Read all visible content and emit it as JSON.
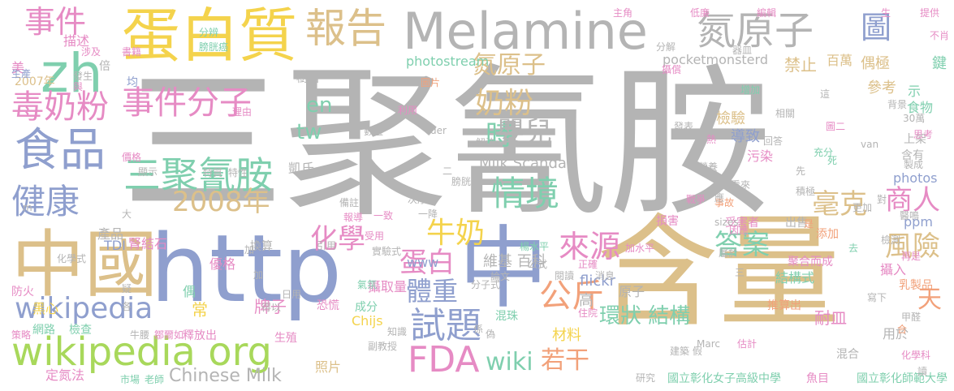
{
  "palette": {
    "gray": "#b4b4b4",
    "tan": "#dcc08a",
    "blue": "#8f9fce",
    "green": "#7fcfae",
    "yellow": "#f4d34c",
    "pink": "#e68bc4",
    "orange": "#f2a17a",
    "lime": "#a8d85b"
  },
  "words": [
    {
      "id": "sanjuqinganan-big",
      "text": "三聚氰胺",
      "color": "gray"
    },
    {
      "id": "hanliang",
      "text": "含量",
      "color": "tan"
    },
    {
      "id": "http",
      "text": "http",
      "color": "blue"
    },
    {
      "id": "zhongguo",
      "text": "中國",
      "color": "tan"
    },
    {
      "id": "zhong",
      "text": "中",
      "color": "blue"
    },
    {
      "id": "melamine",
      "text": "Melamine",
      "color": "gray"
    },
    {
      "id": "danbaizhi",
      "text": "蛋白質",
      "color": "yellow"
    },
    {
      "id": "danyuanzi",
      "text": "氮原子",
      "color": "gray"
    },
    {
      "id": "baogao",
      "text": "報告",
      "color": "tan"
    },
    {
      "id": "zh",
      "text": "zh",
      "color": "green"
    },
    {
      "id": "tu",
      "text": "圖",
      "color": "blue"
    },
    {
      "id": "shijian-left",
      "text": "事件",
      "color": "pink"
    },
    {
      "id": "dunainfen",
      "text": "毒奶粉",
      "color": "pink"
    },
    {
      "id": "shijianfenzi",
      "text": "事件分子",
      "color": "pink"
    },
    {
      "id": "shipin",
      "text": "食品",
      "color": "blue"
    },
    {
      "id": "sanjuqinganan-small",
      "text": "三聚氰胺",
      "color": "green"
    },
    {
      "id": "jiankang",
      "text": "健康",
      "color": "blue"
    },
    {
      "id": "nianfen",
      "text": "奶粉",
      "color": "tan"
    },
    {
      "id": "shi",
      "text": "時",
      "color": "green"
    },
    {
      "id": "yinger",
      "text": "嬰兒",
      "color": "gray"
    },
    {
      "id": "qingjing",
      "text": "情境",
      "color": "green"
    },
    {
      "id": "en",
      "text": "en",
      "color": "green"
    },
    {
      "id": "tw",
      "text": "tw",
      "color": "green"
    },
    {
      "id": "danyuanzi-small",
      "text": "氮原子",
      "color": "tan"
    },
    {
      "id": "y2008",
      "text": "2008年",
      "color": "tan"
    },
    {
      "id": "huaxue",
      "text": "化學",
      "color": "pink"
    },
    {
      "id": "niunai",
      "text": "牛奶",
      "color": "yellow"
    },
    {
      "id": "danbai",
      "text": "蛋白",
      "color": "pink"
    },
    {
      "id": "laiyuan",
      "text": "來源",
      "color": "pink"
    },
    {
      "id": "tizhong",
      "text": "體重",
      "color": "blue"
    },
    {
      "id": "shiti",
      "text": "試題",
      "color": "blue"
    },
    {
      "id": "gongjin",
      "text": "公斤",
      "color": "orange"
    },
    {
      "id": "fda",
      "text": "FDA",
      "color": "pink"
    },
    {
      "id": "wiki",
      "text": "wiki",
      "color": "green"
    },
    {
      "id": "ruogan",
      "text": "若干",
      "color": "orange"
    },
    {
      "id": "daan",
      "text": "答案",
      "color": "green"
    },
    {
      "id": "haoke",
      "text": "毫克",
      "color": "tan"
    },
    {
      "id": "shangren",
      "text": "商人",
      "color": "pink"
    },
    {
      "id": "fengxian",
      "text": "風險",
      "color": "tan"
    },
    {
      "id": "tian",
      "text": "天",
      "color": "orange"
    },
    {
      "id": "wikipedia",
      "text": "wikipedia",
      "color": "blue"
    },
    {
      "id": "wikipedia-org",
      "text": "wikipedia org",
      "color": "lime"
    },
    {
      "id": "huanzhuang",
      "text": "環狀 結構",
      "color": "green"
    },
    {
      "id": "chinese-milk",
      "text": "Chinese Milk",
      "color": "gray"
    },
    {
      "id": "milk-scandal",
      "text": "Milk Scandal",
      "color": "gray"
    },
    {
      "id": "photostream",
      "text": "photostream",
      "color": "green"
    },
    {
      "id": "pocketmonsterd",
      "text": "pocketmonsterd",
      "color": "gray"
    },
    {
      "id": "weiji",
      "text": "維基 百科",
      "color": "gray"
    },
    {
      "id": "flickr",
      "text": "flickr",
      "color": "blue"
    },
    {
      "id": "photos",
      "text": "photos",
      "color": "blue"
    },
    {
      "id": "jiegoushi",
      "text": "結構式",
      "color": "green"
    },
    {
      "id": "naimin",
      "text": "耐皿",
      "color": "pink"
    },
    {
      "id": "shenjieshi",
      "text": "腎結石",
      "color": "pink"
    },
    {
      "id": "sheququ",
      "text": "攝取量",
      "color": "pink"
    },
    {
      "id": "paizi",
      "text": "牌子",
      "color": "pink"
    },
    {
      "id": "chang",
      "text": "常",
      "color": "yellow"
    },
    {
      "id": "cailiao",
      "text": "材料",
      "color": "yellow"
    },
    {
      "id": "gao",
      "text": "高",
      "color": "gray"
    },
    {
      "id": "yuanzi",
      "text": "原子",
      "color": "gray"
    },
    {
      "id": "ppm",
      "text": "ppm",
      "color": "blue"
    },
    {
      "id": "www",
      "text": "www",
      "color": "blue"
    },
    {
      "id": "chijs",
      "text": "Chijs",
      "color": "yellow"
    },
    {
      "id": "zhaopian",
      "text": "照片",
      "color": "tan"
    },
    {
      "id": "heixin",
      "text": "黑心",
      "color": "yellow"
    },
    {
      "id": "chanpin",
      "text": "產品",
      "color": "gray"
    },
    {
      "id": "tdi",
      "text": "TDI",
      "color": "blue"
    },
    {
      "id": "youge",
      "text": "優格",
      "color": "pink"
    },
    {
      "id": "y2007",
      "text": "2007年",
      "color": "tan"
    },
    {
      "id": "miaoshu",
      "text": "描述",
      "color": "pink"
    },
    {
      "id": "mei",
      "text": "美",
      "color": "pink"
    },
    {
      "id": "jianyan",
      "text": "檢驗",
      "color": "tan"
    },
    {
      "id": "daozhi",
      "text": "導致",
      "color": "blue"
    },
    {
      "id": "kaishi",
      "text": "凱氏",
      "color": "gray"
    },
    {
      "id": "jinzhi",
      "text": "禁止",
      "color": "tan"
    },
    {
      "id": "ouji",
      "text": "偶極",
      "color": "tan"
    },
    {
      "id": "baiwan",
      "text": "百萬",
      "color": "tan"
    },
    {
      "id": "cankao",
      "text": "參考",
      "color": "tan"
    },
    {
      "id": "shiwu",
      "text": "食物",
      "color": "green"
    },
    {
      "id": "shangjia",
      "text": "上架",
      "color": "gray"
    },
    {
      "id": "xiang",
      "text": "示",
      "color": "green"
    },
    {
      "id": "jian",
      "text": "鍵",
      "color": "green"
    },
    {
      "id": "wuran",
      "text": "污染",
      "color": "pink"
    },
    {
      "id": "hanyou",
      "text": "含有",
      "color": "gray"
    },
    {
      "id": "shengchan",
      "text": "生產",
      "color": "blue"
    },
    {
      "id": "fenjie",
      "text": "分解",
      "color": "gray"
    },
    {
      "id": "qiming",
      "text": "器皿",
      "color": "gray"
    },
    {
      "id": "tigong",
      "text": "提供",
      "color": "pink"
    },
    {
      "id": "zhujiao",
      "text": "主角",
      "color": "pink"
    },
    {
      "id": "dilian",
      "text": "低廉",
      "color": "pink"
    },
    {
      "id": "bianji",
      "text": "編輯",
      "color": "pink"
    },
    {
      "id": "bianji2",
      "text": "分辨",
      "color": "green"
    },
    {
      "id": "panguangbing",
      "text": "膀胱癌",
      "color": "green"
    },
    {
      "id": "sheying",
      "text": "攝償",
      "color": "pink"
    },
    {
      "id": "buxiao",
      "text": "不肖",
      "color": "pink"
    },
    {
      "id": "shuzhi",
      "text": "樹脂",
      "color": "gray"
    },
    {
      "id": "shuishou",
      "text": "事故",
      "color": "orange"
    },
    {
      "id": "sunhai",
      "text": "損害",
      "color": "pink"
    },
    {
      "id": "shouhaizhe",
      "text": "受害者",
      "color": "pink"
    },
    {
      "id": "chushou",
      "text": "出售",
      "color": "gray"
    },
    {
      "id": "tianjia",
      "text": "添加",
      "color": "orange"
    },
    {
      "id": "juhe",
      "text": "聚合而成",
      "color": "pink"
    },
    {
      "id": "sheru",
      "text": "攝入",
      "color": "pink"
    },
    {
      "id": "ruzhipin",
      "text": "乳製品",
      "color": "orange"
    },
    {
      "id": "xiexia",
      "text": "寫下",
      "color": "gray"
    },
    {
      "id": "guji",
      "text": "估計",
      "color": "pink"
    },
    {
      "id": "yongyu",
      "text": "用於",
      "color": "gray"
    },
    {
      "id": "hunhe",
      "text": "混合",
      "color": "gray"
    },
    {
      "id": "huaxueke",
      "text": "化學科",
      "color": "pink"
    },
    {
      "id": "yuer",
      "text": "魚目",
      "color": "pink"
    },
    {
      "id": "guoli",
      "text": "國立彰化女子高級中學",
      "color": "green"
    },
    {
      "id": "guolishifan",
      "text": "國立彰化師範大學",
      "color": "green"
    },
    {
      "id": "yanjiu",
      "text": "研究",
      "color": "gray"
    },
    {
      "id": "jianzhu",
      "text": "建築 假",
      "color": "gray"
    },
    {
      "id": "marc",
      "text": "Marc",
      "color": "gray"
    },
    {
      "id": "fuhuo",
      "text": "防火",
      "color": "pink"
    },
    {
      "id": "celue",
      "text": "策略",
      "color": "pink"
    },
    {
      "id": "wanglu",
      "text": "網路",
      "color": "green"
    },
    {
      "id": "jiancha",
      "text": "檢查",
      "color": "green"
    },
    {
      "id": "dingdanfa",
      "text": "定氮法",
      "color": "pink"
    },
    {
      "id": "shichang",
      "text": "市場",
      "color": "green"
    },
    {
      "id": "laoshi",
      "text": "老師",
      "color": "green"
    },
    {
      "id": "huaxueshi",
      "text": "化學式",
      "color": "gray"
    },
    {
      "id": "huanxin",
      "text": "換算",
      "color": "gray"
    },
    {
      "id": "kongbu",
      "text": "恐慌",
      "color": "pink"
    },
    {
      "id": "chengfen",
      "text": "成分",
      "color": "green"
    },
    {
      "id": "zhishi",
      "text": "知識",
      "color": "gray"
    },
    {
      "id": "fujiaoshou",
      "text": "副教授",
      "color": "gray"
    },
    {
      "id": "shifangchu",
      "text": "釋放出",
      "color": "pink"
    },
    {
      "id": "zhuli",
      "text": "生殖",
      "color": "pink"
    },
    {
      "id": "hunzhu",
      "text": "混珠",
      "color": "green"
    },
    {
      "id": "tuijiangchu",
      "text": "推算出",
      "color": "orange"
    },
    {
      "id": "zhengque",
      "text": "正確",
      "color": "pink"
    },
    {
      "id": "gongshi",
      "text": "公式",
      "color": "gray"
    },
    {
      "id": "fenzishi",
      "text": "分子式",
      "color": "gray"
    },
    {
      "id": "zhuyuan",
      "text": "住院",
      "color": "pink"
    },
    {
      "id": "jiashuiping",
      "text": "加水平",
      "color": "pink"
    },
    {
      "id": "yangshuiping",
      "text": "楊水平",
      "color": "green"
    },
    {
      "id": "chenxu",
      "text": "次序",
      "color": "gray"
    },
    {
      "id": "yiji",
      "text": "一降",
      "color": "gray"
    },
    {
      "id": "shiyanshi",
      "text": "實驗式",
      "color": "gray"
    },
    {
      "id": "baodao",
      "text": "報導",
      "color": "pink"
    },
    {
      "id": "shouyong",
      "text": "受用",
      "color": "pink"
    },
    {
      "id": "yinyong",
      "text": "引用",
      "color": "gray"
    },
    {
      "id": "yizhi",
      "text": "一致",
      "color": "pink"
    },
    {
      "id": "beizhu",
      "text": "備註",
      "color": "gray"
    },
    {
      "id": "jiejue",
      "text": "解決",
      "color": "gray"
    },
    {
      "id": "panguang",
      "text": "膀胱",
      "color": "gray"
    },
    {
      "id": "lunwen",
      "text": "論文",
      "color": "gray"
    },
    {
      "id": "yuedu",
      "text": "閱讀",
      "color": "gray"
    },
    {
      "id": "xiaoxi",
      "text": "消息",
      "color": "gray"
    },
    {
      "id": "xianshi",
      "text": "顯示",
      "color": "gray"
    },
    {
      "id": "jiage",
      "text": "價格",
      "color": "pink"
    },
    {
      "id": "liyong",
      "text": "利用",
      "color": "pink"
    },
    {
      "id": "shuliang",
      "text": "數量",
      "color": "gray"
    },
    {
      "id": "tupian",
      "text": "圖片",
      "color": "orange"
    },
    {
      "id": "shuji",
      "text": "書籍",
      "color": "pink"
    },
    {
      "id": "fazhan",
      "text": "發生",
      "color": "gray"
    },
    {
      "id": "jun",
      "text": "均",
      "color": "blue"
    },
    {
      "id": "bei",
      "text": "倍",
      "color": "gray"
    },
    {
      "id": "sheji",
      "text": "涉及",
      "color": "pink"
    },
    {
      "id": "yu",
      "text": "與",
      "color": "pink"
    },
    {
      "id": "liyou",
      "text": "理由",
      "color": "pink"
    },
    {
      "id": "zengjia",
      "text": "增加",
      "color": "green"
    },
    {
      "id": "beijing",
      "text": "背景",
      "color": "gray"
    },
    {
      "id": "sanshiwan",
      "text": "30萬",
      "color": "gray"
    },
    {
      "id": "sikao",
      "text": "思考",
      "color": "pink"
    },
    {
      "id": "chongfen",
      "text": "充分",
      "color": "green"
    },
    {
      "id": "si",
      "text": "死",
      "color": "green"
    },
    {
      "id": "zhicheng",
      "text": "製成",
      "color": "gray"
    },
    {
      "id": "xian",
      "text": "先",
      "color": "gray"
    },
    {
      "id": "zhaoyu",
      "text": "戰爭",
      "color": "pink"
    },
    {
      "id": "re",
      "text": "熱",
      "color": "pink"
    },
    {
      "id": "huida",
      "text": "回答",
      "color": "gray"
    },
    {
      "id": "shuxing",
      "text": "特性",
      "color": "gray"
    },
    {
      "id": "tezhi",
      "text": "特質",
      "color": "gray"
    },
    {
      "id": "dui",
      "text": "對",
      "color": "gray"
    },
    {
      "id": "gengjia",
      "text": "更加",
      "color": "gray"
    },
    {
      "id": "yinshe",
      "text": "因應",
      "color": "pink"
    },
    {
      "id": "zaishi",
      "text": "再是",
      "color": "pink"
    },
    {
      "id": "ou",
      "text": "偶",
      "color": "green"
    },
    {
      "id": "xi",
      "text": "係",
      "color": "gray"
    },
    {
      "id": "wei",
      "text": "偽",
      "color": "gray"
    },
    {
      "id": "yingdun",
      "text": "營養",
      "color": "gray"
    },
    {
      "id": "qiti",
      "text": "氣氛",
      "color": "green"
    },
    {
      "id": "van",
      "text": "van",
      "color": "gray"
    },
    {
      "id": "der",
      "text": "der",
      "color": "gray"
    },
    {
      "id": "m",
      "text": "m",
      "color": "gray"
    },
    {
      "id": "sizes",
      "text": "sizes",
      "color": "gray"
    },
    {
      "id": "shi2",
      "text": "是",
      "color": "orange"
    },
    {
      "id": "yiming",
      "text": "醫鳴",
      "color": "gray"
    },
    {
      "id": "qu",
      "text": "去",
      "color": "green"
    },
    {
      "id": "jia",
      "text": "加",
      "color": "gray"
    },
    {
      "id": "he",
      "text": "合",
      "color": "orange"
    },
    {
      "id": "sheng",
      "text": "生",
      "color": "pink"
    },
    {
      "id": "du",
      "text": "讀",
      "color": "gray"
    },
    {
      "id": "gan",
      "text": "甲醛",
      "color": "gray"
    },
    {
      "id": "niuyao",
      "text": "牛腰",
      "color": "gray"
    },
    {
      "id": "zouman",
      "text": "鄒爾如",
      "color": "pink"
    },
    {
      "id": "yi",
      "text": "疑",
      "color": "gray"
    },
    {
      "id": "jia2",
      "text": "加",
      "color": "gray"
    },
    {
      "id": "ge",
      "text": "各",
      "color": "gray"
    },
    {
      "id": "de",
      "text": "得以",
      "color": "gray"
    },
    {
      "id": "yong",
      "text": "日用",
      "color": "gray"
    },
    {
      "id": "da",
      "text": "大",
      "color": "gray"
    },
    {
      "id": "er",
      "text": "二",
      "color": "gray"
    },
    {
      "id": "san",
      "text": "三",
      "color": "gray"
    },
    {
      "id": "tu2",
      "text": "圖二",
      "color": "pink"
    },
    {
      "id": "jiji",
      "text": "積極",
      "color": "gray"
    },
    {
      "id": "kanlai",
      "text": "看來",
      "color": "gray"
    },
    {
      "id": "zhe",
      "text": "這",
      "color": "gray"
    },
    {
      "id": "jiancha2",
      "text": "檢測",
      "color": "gray"
    },
    {
      "id": "shuyu",
      "text": "屬於",
      "color": "gray"
    },
    {
      "id": "ying",
      "text": "應",
      "color": "gray"
    },
    {
      "id": "fabiao",
      "text": "發表",
      "color": "gray"
    },
    {
      "id": "xiangguan",
      "text": "相關",
      "color": "gray"
    }
  ]
}
